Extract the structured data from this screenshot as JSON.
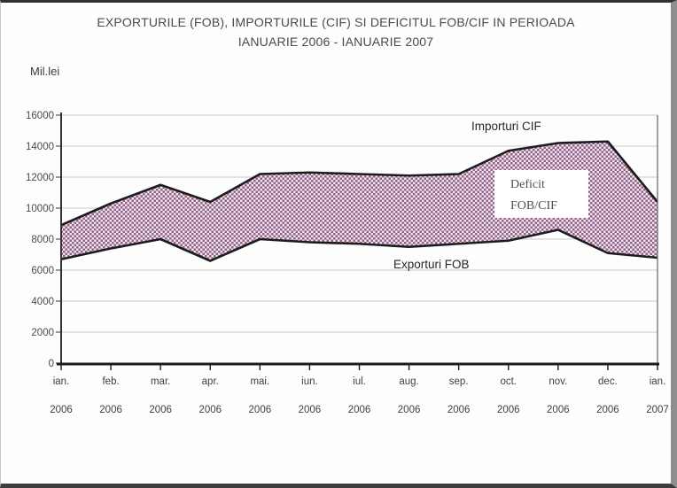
{
  "title": {
    "line1": "EXPORTURILE (FOB), IMPORTURILE (CIF) SI DEFICITUL FOB/CIF IN PERIOADA",
    "line2": "IANUARIE 2006 - IANUARIE 2007"
  },
  "unit_label": "Mil.lei",
  "annotations": {
    "imports_label": "Importuri CIF",
    "exports_label": "Exporturi FOB",
    "deficit_line1": "Deficit",
    "deficit_line2": "FOB/CIF"
  },
  "colors": {
    "pattern_dark": "#8f6386",
    "pattern_light": "#f3e4f1",
    "curve": "#1c1c1c",
    "grid": "#c9c9c9",
    "axis": "#333333",
    "right_border": "#6f6f6f",
    "x_axis": "#1a1a1a"
  },
  "chart_data": {
    "type": "area",
    "title": "EXPORTURILE (FOB), IMPORTURILE (CIF) SI DEFICITUL FOB/CIF IN PERIOADA IANUARIE 2006 - IANUARIE 2007",
    "xlabel": "",
    "ylabel": "Mil.lei",
    "ylim": [
      0,
      16000
    ],
    "y_ticks": [
      0,
      2000,
      4000,
      6000,
      8000,
      10000,
      12000,
      14000,
      16000
    ],
    "grid": "horizontal",
    "legend_position": "none",
    "fill_between_label": "Deficit FOB/CIF",
    "months": [
      "ian.",
      "feb.",
      "mar.",
      "apr.",
      "mai.",
      "iun.",
      "iul.",
      "aug.",
      "sep.",
      "oct.",
      "nov.",
      "dec.",
      "ian."
    ],
    "years": [
      "2006",
      "2006",
      "2006",
      "2006",
      "2006",
      "2006",
      "2006",
      "2006",
      "2006",
      "2006",
      "2006",
      "2006",
      "2007"
    ],
    "series": [
      {
        "name": "Importuri CIF",
        "values": [
          8900,
          10300,
          11500,
          10400,
          12200,
          12300,
          12200,
          12100,
          12200,
          13700,
          14200,
          14300,
          10400
        ]
      },
      {
        "name": "Exporturi FOB",
        "values": [
          6700,
          7400,
          8000,
          6600,
          8000,
          7800,
          7700,
          7500,
          7700,
          7900,
          8600,
          7100,
          6800
        ]
      }
    ]
  }
}
